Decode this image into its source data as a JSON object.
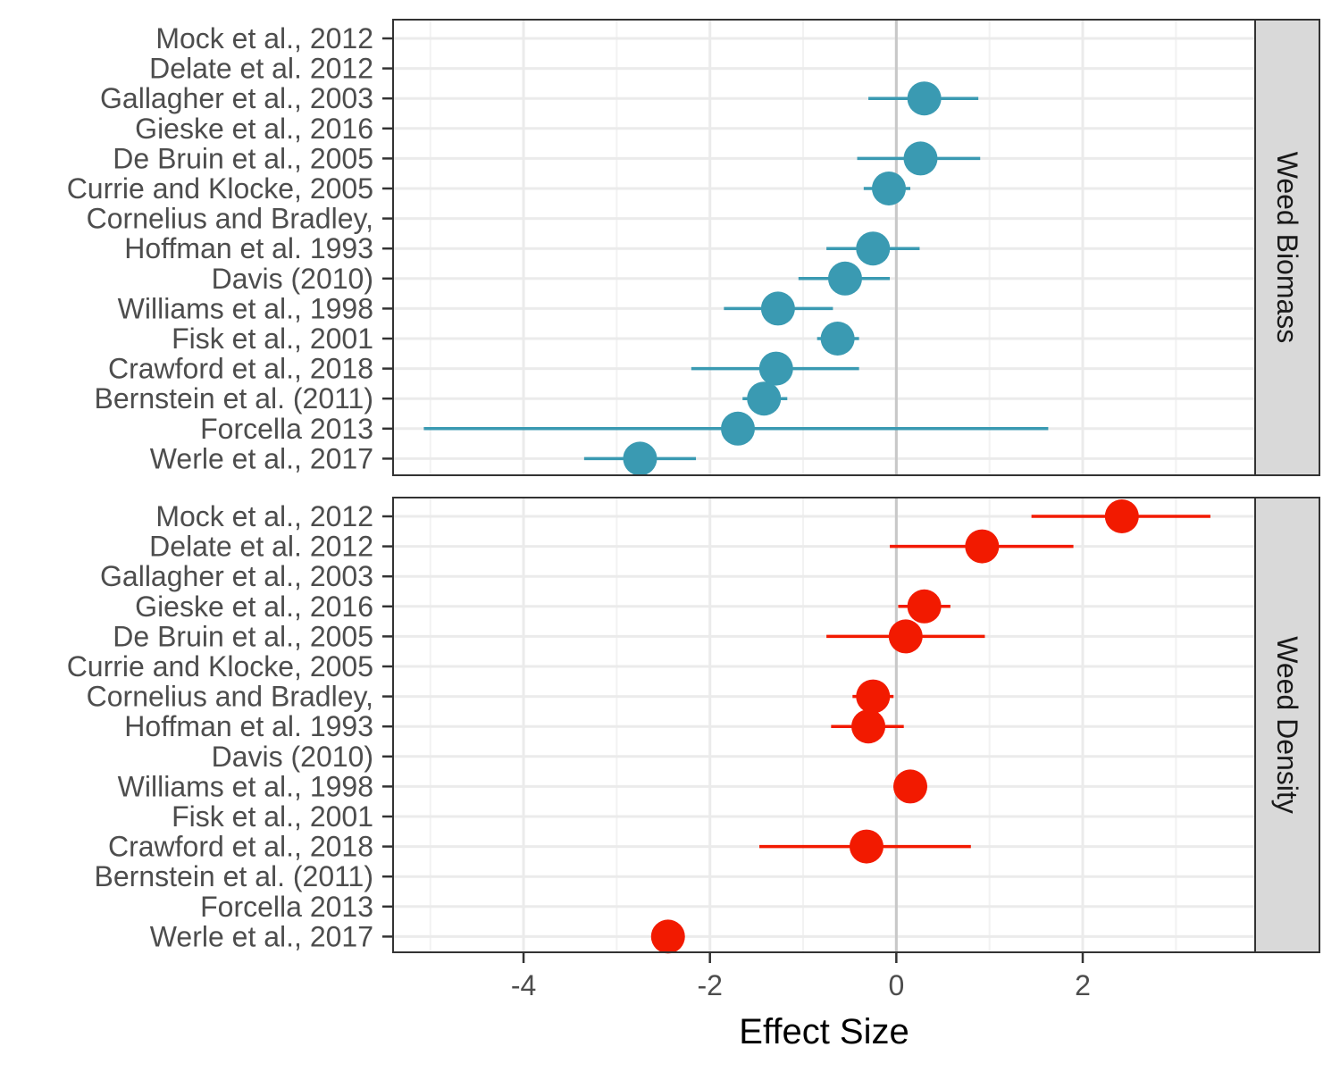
{
  "chart_data": {
    "type": "scatter",
    "subtype": "forest-plot",
    "xlabel": "Effect Size",
    "xlim": [
      -5.4,
      3.85
    ],
    "x_ticks": [
      -4,
      -2,
      0,
      2
    ],
    "x_tick_labels": [
      "-4",
      "-2",
      "0",
      "2"
    ],
    "reference_line_x": 0,
    "grid": true,
    "categories": [
      "Mock et al., 2012",
      "Delate et al. 2012",
      "Gallagher et al., 2003",
      "Gieske et al., 2016",
      "De Bruin et al., 2005",
      "Currie and Klocke, 2005",
      "Cornelius and Bradley,",
      "Hoffman et al. 1993",
      "Davis (2010)",
      "Williams et al., 1998",
      "Fisk et al., 2001",
      "Crawford et al., 2018",
      "Bernstein et al. (2011)",
      "Forcella 2013",
      "Werle et al., 2017"
    ],
    "panels": [
      {
        "name": "Weed Biomass",
        "color": "#3a9ab2",
        "points": [
          {
            "study": "Gallagher et al., 2003",
            "effect": 0.3,
            "lower": -0.3,
            "upper": 0.88
          },
          {
            "study": "De Bruin et al., 2005",
            "effect": 0.26,
            "lower": -0.42,
            "upper": 0.9
          },
          {
            "study": "Currie and Klocke, 2005",
            "effect": -0.08,
            "lower": -0.35,
            "upper": 0.15
          },
          {
            "study": "Hoffman et al. 1993",
            "effect": -0.25,
            "lower": -0.75,
            "upper": 0.25
          },
          {
            "study": "Davis (2010)",
            "effect": -0.55,
            "lower": -1.05,
            "upper": -0.07
          },
          {
            "study": "Williams et al., 1998",
            "effect": -1.27,
            "lower": -1.85,
            "upper": -0.68
          },
          {
            "study": "Fisk et al., 2001",
            "effect": -0.63,
            "lower": -0.85,
            "upper": -0.4
          },
          {
            "study": "Crawford et al., 2018",
            "effect": -1.29,
            "lower": -2.2,
            "upper": -0.4
          },
          {
            "study": "Bernstein et al. (2011)",
            "effect": -1.42,
            "lower": -1.65,
            "upper": -1.17
          },
          {
            "study": "Forcella 2013",
            "effect": -1.7,
            "lower": -5.07,
            "upper": 1.63
          },
          {
            "study": "Werle et al., 2017",
            "effect": -2.75,
            "lower": -3.35,
            "upper": -2.15
          }
        ]
      },
      {
        "name": "Weed Density",
        "color": "#f21a00",
        "points": [
          {
            "study": "Mock et al., 2012",
            "effect": 2.42,
            "lower": 1.45,
            "upper": 3.37
          },
          {
            "study": "Delate et al. 2012",
            "effect": 0.92,
            "lower": -0.07,
            "upper": 1.9
          },
          {
            "study": "Gieske et al., 2016",
            "effect": 0.3,
            "lower": 0.02,
            "upper": 0.58
          },
          {
            "study": "De Bruin et al., 2005",
            "effect": 0.1,
            "lower": -0.75,
            "upper": 0.95
          },
          {
            "study": "Cornelius and Bradley,",
            "effect": -0.25,
            "lower": -0.47,
            "upper": -0.03
          },
          {
            "study": "Hoffman et al. 1993",
            "effect": -0.3,
            "lower": -0.7,
            "upper": 0.08
          },
          {
            "study": "Williams et al., 1998",
            "effect": 0.15,
            "lower": -0.03,
            "upper": 0.33
          },
          {
            "study": "Crawford et al., 2018",
            "effect": -0.32,
            "lower": -1.47,
            "upper": 0.8
          },
          {
            "study": "Werle et al., 2017",
            "effect": -2.45,
            "lower": -2.45,
            "upper": -2.45
          }
        ]
      }
    ]
  }
}
